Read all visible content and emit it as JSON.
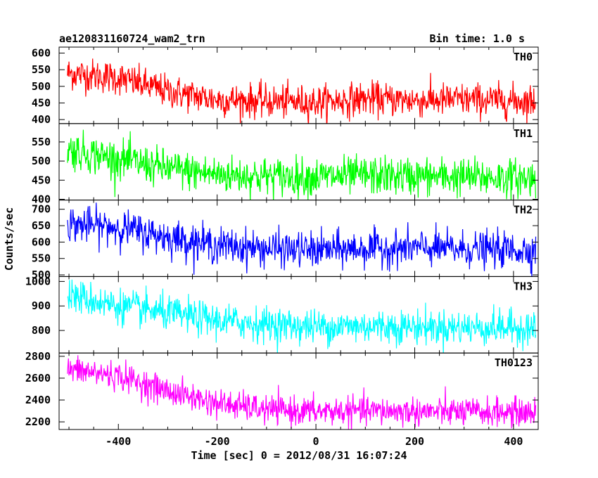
{
  "chart_data": {
    "type": "line",
    "title": "ae120831160724_wam2_trn",
    "subtitle": "Bin time: 1.0 s",
    "xlabel": "Time [sec] 0 = 2012/08/31 16:07:24",
    "ylabel": "Counts/sec",
    "xlim": [
      -520,
      450
    ],
    "xticks": [
      -400,
      -200,
      0,
      200,
      400
    ],
    "x_range": [
      -503,
      445
    ],
    "grid": false,
    "panels": [
      {
        "name": "TH0",
        "color": "#ff0000",
        "ylim": [
          388,
          618
        ],
        "yticks": [
          400,
          450,
          500,
          550,
          600
        ],
        "trend": [
          [
            -503,
            540
          ],
          [
            -400,
            525
          ],
          [
            -300,
            485
          ],
          [
            -200,
            460
          ],
          [
            -100,
            455
          ],
          [
            0,
            452
          ],
          [
            100,
            463
          ],
          [
            200,
            458
          ],
          [
            300,
            460
          ],
          [
            445,
            455
          ]
        ],
        "noise": 25
      },
      {
        "name": "TH1",
        "color": "#00ff00",
        "ylim": [
          398,
          598
        ],
        "yticks": [
          400,
          450,
          500,
          550
        ],
        "trend": [
          [
            -503,
            530
          ],
          [
            -400,
            505
          ],
          [
            -300,
            480
          ],
          [
            -200,
            465
          ],
          [
            -100,
            460
          ],
          [
            0,
            458
          ],
          [
            100,
            462
          ],
          [
            200,
            460
          ],
          [
            300,
            458
          ],
          [
            445,
            455
          ]
        ],
        "noise": 25
      },
      {
        "name": "TH2",
        "color": "#0000ff",
        "ylim": [
          495,
          728
        ],
        "yticks": [
          500,
          550,
          600,
          650,
          700
        ],
        "trend": [
          [
            -503,
            655
          ],
          [
            -400,
            645
          ],
          [
            -300,
            615
          ],
          [
            -200,
            590
          ],
          [
            -100,
            580
          ],
          [
            0,
            575
          ],
          [
            100,
            580
          ],
          [
            200,
            582
          ],
          [
            300,
            578
          ],
          [
            445,
            575
          ]
        ],
        "noise": 27
      },
      {
        "name": "TH3",
        "color": "#00ffff",
        "ylim": [
          708,
          1020
        ],
        "yticks": [
          800,
          900,
          1000
        ],
        "trend": [
          [
            -503,
            945
          ],
          [
            -400,
            900
          ],
          [
            -300,
            870
          ],
          [
            -200,
            840
          ],
          [
            -100,
            825
          ],
          [
            0,
            815
          ],
          [
            100,
            818
          ],
          [
            200,
            815
          ],
          [
            300,
            812
          ],
          [
            445,
            810
          ]
        ],
        "noise": 35
      },
      {
        "name": "TH0123",
        "color": "#ff00ff",
        "ylim": [
          2130,
          2830
        ],
        "yticks": [
          2200,
          2400,
          2600,
          2800
        ],
        "trend": [
          [
            -503,
            2680
          ],
          [
            -400,
            2620
          ],
          [
            -300,
            2480
          ],
          [
            -200,
            2370
          ],
          [
            -100,
            2310
          ],
          [
            0,
            2295
          ],
          [
            100,
            2300
          ],
          [
            200,
            2295
          ],
          [
            300,
            2290
          ],
          [
            445,
            2285
          ]
        ],
        "noise": 65
      }
    ]
  }
}
